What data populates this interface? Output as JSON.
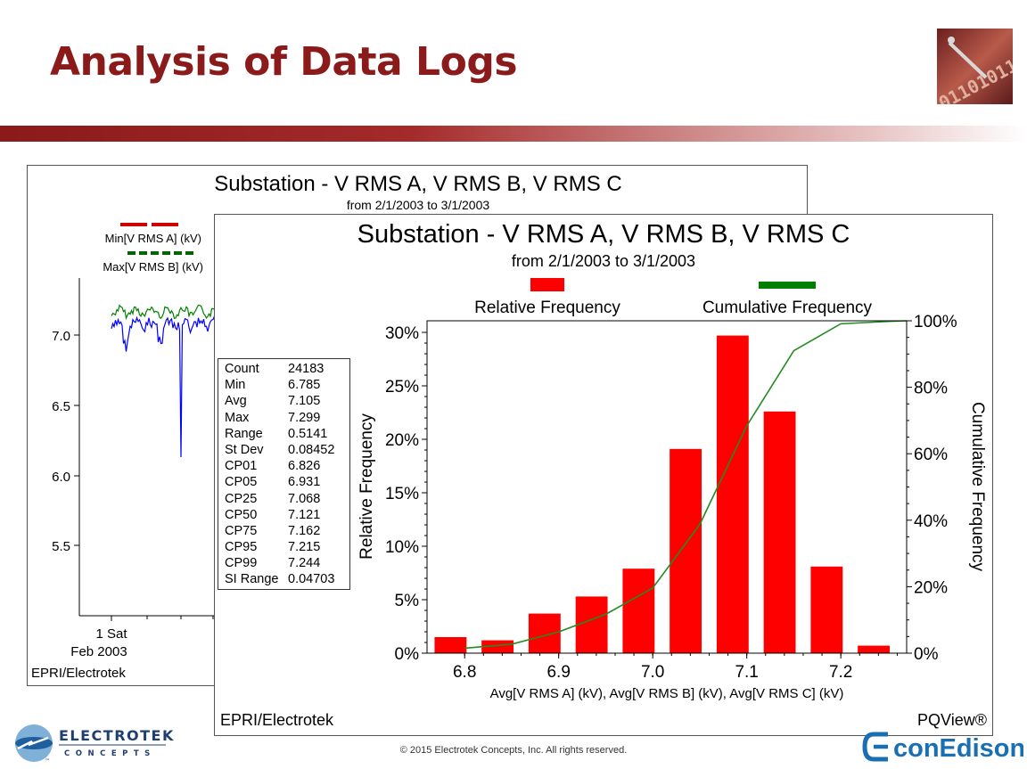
{
  "slide": {
    "title": "Analysis of Data Logs",
    "copyright": "© 2015 Electrotek Concepts, Inc. All rights reserved.",
    "logo_left": {
      "name": "ELECTROTEK",
      "sub": "CONCEPTS",
      "mark": "™"
    },
    "logo_right": {
      "name": "conEdison"
    },
    "colors": {
      "title": "#8b1a1a",
      "band": "#a52a2a",
      "bar": "#ff0000",
      "cum": "#228B22",
      "trace_blue": "#0000ff",
      "trace_green": "#008000"
    }
  },
  "back_chart": {
    "title": "Substation - V RMS A, V RMS B, V RMS C",
    "subtitle": "from 2/1/2003 to 3/1/2003",
    "legend": [
      "Min[V RMS A] (kV)",
      "Max[V RMS B] (kV)"
    ],
    "y_ticks": [
      "7.0",
      "6.5",
      "6.0",
      "5.5"
    ],
    "x_label_1": "1 Sat",
    "x_label_2": "Feb 2003",
    "footer": "EPRI/Electrotek"
  },
  "stats": [
    {
      "k": "Count",
      "v": "24183"
    },
    {
      "k": "Min",
      "v": "6.785"
    },
    {
      "k": "Avg",
      "v": "7.105"
    },
    {
      "k": "Max",
      "v": "7.299"
    },
    {
      "k": "Range",
      "v": "0.5141"
    },
    {
      "k": "St Dev",
      "v": "0.08452"
    },
    {
      "k": "CP01",
      "v": "6.826"
    },
    {
      "k": "CP05",
      "v": "6.931"
    },
    {
      "k": "CP25",
      "v": "7.068"
    },
    {
      "k": "CP50",
      "v": "7.121"
    },
    {
      "k": "CP75",
      "v": "7.162"
    },
    {
      "k": "CP95",
      "v": "7.215"
    },
    {
      "k": "CP99",
      "v": "7.244"
    },
    {
      "k": "SI Range",
      "v": "0.04703"
    }
  ],
  "chart_data": {
    "type": "bar",
    "title": "Substation - V RMS A, V RMS B, V RMS C",
    "subtitle": "from 2/1/2003 to 3/1/2003",
    "xlabel": "Avg[V RMS A] (kV), Avg[V RMS B] (kV), Avg[V RMS C] (kV)",
    "ylabel": "Relative Frequency",
    "y2label": "Cumulative Frequency",
    "legend": [
      "Relative Frequency",
      "Cumulative Frequency"
    ],
    "footer_left": "EPRI/Electrotek",
    "footer_right": "PQView®",
    "xlim": [
      6.76,
      7.27
    ],
    "ylim": [
      0,
      31
    ],
    "y2lim": [
      0,
      100
    ],
    "x_ticks": [
      6.8,
      6.9,
      7.0,
      7.1,
      7.2
    ],
    "x_tick_labels": [
      "6.8",
      "6.9",
      "7.0",
      "7.1",
      "7.2"
    ],
    "y_ticks": [
      0,
      5,
      10,
      15,
      20,
      25,
      30
    ],
    "y_tick_labels": [
      "0%",
      "5%",
      "10%",
      "15%",
      "20%",
      "25%",
      "30%"
    ],
    "y2_ticks": [
      0,
      20,
      40,
      60,
      80,
      100
    ],
    "y2_tick_labels": [
      "0%",
      "20%",
      "40%",
      "60%",
      "80%",
      "100%"
    ],
    "bin_centers": [
      6.785,
      6.835,
      6.885,
      6.935,
      6.985,
      7.035,
      7.085,
      7.135,
      7.185,
      7.235
    ],
    "bin_width": 0.034,
    "values": [
      1.5,
      1.2,
      3.7,
      5.3,
      7.9,
      19.1,
      29.7,
      22.6,
      8.1,
      0.7
    ],
    "cumulative": {
      "x": [
        6.8,
        6.85,
        6.9,
        6.95,
        7.0,
        7.05,
        7.1,
        7.15,
        7.2,
        7.25,
        7.27
      ],
      "y": [
        1.5,
        2.7,
        6.4,
        11.7,
        19.6,
        38.7,
        68.4,
        91.0,
        99.1,
        99.8,
        100
      ]
    }
  }
}
